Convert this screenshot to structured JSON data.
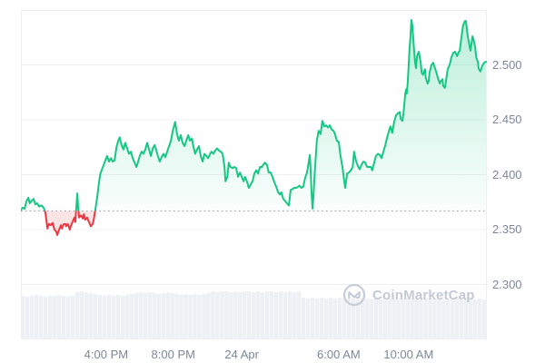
{
  "watermark": {
    "text": "CoinMarketCap"
  },
  "chart_data": {
    "type": "area",
    "grid": true,
    "legend": false,
    "ylim": [
      2.25,
      2.55
    ],
    "baseline_price": 2.367,
    "y_ticks": [
      2.5,
      2.45,
      2.4,
      2.35,
      2.3
    ],
    "y_tick_labels": [
      "2.500",
      "2.450",
      "2.400",
      "2.350",
      "2.300"
    ],
    "x_ticks": [
      {
        "label": "4:00 PM",
        "pos": 0.183
      },
      {
        "label": "8:00 PM",
        "pos": 0.327
      },
      {
        "label": "24 Apr",
        "pos": 0.474
      },
      {
        "label": "6:00 AM",
        "pos": 0.682
      },
      {
        "label": "10:00 AM",
        "pos": 0.832
      }
    ],
    "colors": {
      "up": "#16c784",
      "down": "#ea3943",
      "grid": "#edf0f3",
      "axis_text": "#7e8799",
      "baseline": "#8e97aa",
      "volume": "#edf0f4",
      "watermark": "#c3c9d4"
    },
    "series": [
      {
        "name": "price",
        "points": [
          [
            0.0,
            2.368
          ],
          [
            0.004,
            2.37
          ],
          [
            0.008,
            2.369
          ],
          [
            0.012,
            2.376
          ],
          [
            0.016,
            2.379
          ],
          [
            0.019,
            2.374
          ],
          [
            0.023,
            2.376
          ],
          [
            0.027,
            2.378
          ],
          [
            0.031,
            2.373
          ],
          [
            0.035,
            2.374
          ],
          [
            0.039,
            2.371
          ],
          [
            0.043,
            2.372
          ],
          [
            0.047,
            2.371
          ],
          [
            0.051,
            2.368
          ],
          [
            0.053,
            2.364
          ],
          [
            0.057,
            2.351
          ],
          [
            0.06,
            2.355
          ],
          [
            0.064,
            2.354
          ],
          [
            0.068,
            2.356
          ],
          [
            0.072,
            2.35
          ],
          [
            0.076,
            2.348
          ],
          [
            0.078,
            2.345
          ],
          [
            0.082,
            2.35
          ],
          [
            0.086,
            2.354
          ],
          [
            0.088,
            2.351
          ],
          [
            0.092,
            2.355
          ],
          [
            0.096,
            2.355
          ],
          [
            0.097,
            2.353
          ],
          [
            0.101,
            2.355
          ],
          [
            0.105,
            2.35
          ],
          [
            0.107,
            2.353
          ],
          [
            0.111,
            2.357
          ],
          [
            0.115,
            2.361
          ],
          [
            0.117,
            2.357
          ],
          [
            0.119,
            2.37
          ],
          [
            0.121,
            2.383
          ],
          [
            0.123,
            2.369
          ],
          [
            0.125,
            2.361
          ],
          [
            0.129,
            2.363
          ],
          [
            0.133,
            2.36
          ],
          [
            0.135,
            2.364
          ],
          [
            0.138,
            2.359
          ],
          [
            0.142,
            2.361
          ],
          [
            0.146,
            2.357
          ],
          [
            0.15,
            2.353
          ],
          [
            0.154,
            2.355
          ],
          [
            0.156,
            2.358
          ],
          [
            0.16,
            2.369
          ],
          [
            0.164,
            2.38
          ],
          [
            0.166,
            2.388
          ],
          [
            0.17,
            2.4
          ],
          [
            0.174,
            2.405
          ],
          [
            0.177,
            2.408
          ],
          [
            0.181,
            2.413
          ],
          [
            0.185,
            2.417
          ],
          [
            0.189,
            2.412
          ],
          [
            0.193,
            2.415
          ],
          [
            0.197,
            2.412
          ],
          [
            0.201,
            2.413
          ],
          [
            0.205,
            2.425
          ],
          [
            0.209,
            2.431
          ],
          [
            0.212,
            2.434
          ],
          [
            0.216,
            2.427
          ],
          [
            0.22,
            2.423
          ],
          [
            0.224,
            2.429
          ],
          [
            0.228,
            2.424
          ],
          [
            0.232,
            2.419
          ],
          [
            0.236,
            2.421
          ],
          [
            0.24,
            2.415
          ],
          [
            0.244,
            2.411
          ],
          [
            0.248,
            2.407
          ],
          [
            0.251,
            2.411
          ],
          [
            0.255,
            2.417
          ],
          [
            0.259,
            2.421
          ],
          [
            0.263,
            2.419
          ],
          [
            0.267,
            2.423
          ],
          [
            0.271,
            2.429
          ],
          [
            0.275,
            2.423
          ],
          [
            0.279,
            2.417
          ],
          [
            0.283,
            2.424
          ],
          [
            0.287,
            2.427
          ],
          [
            0.29,
            2.423
          ],
          [
            0.294,
            2.417
          ],
          [
            0.298,
            2.412
          ],
          [
            0.302,
            2.416
          ],
          [
            0.306,
            2.419
          ],
          [
            0.31,
            2.416
          ],
          [
            0.314,
            2.421
          ],
          [
            0.318,
            2.426
          ],
          [
            0.322,
            2.431
          ],
          [
            0.326,
            2.44
          ],
          [
            0.331,
            2.448
          ],
          [
            0.335,
            2.437
          ],
          [
            0.339,
            2.431
          ],
          [
            0.343,
            2.436
          ],
          [
            0.347,
            2.429
          ],
          [
            0.351,
            2.426
          ],
          [
            0.355,
            2.431
          ],
          [
            0.359,
            2.436
          ],
          [
            0.363,
            2.431
          ],
          [
            0.367,
            2.433
          ],
          [
            0.37,
            2.426
          ],
          [
            0.374,
            2.419
          ],
          [
            0.378,
            2.423
          ],
          [
            0.382,
            2.426
          ],
          [
            0.386,
            2.417
          ],
          [
            0.39,
            2.412
          ],
          [
            0.394,
            2.419
          ],
          [
            0.398,
            2.417
          ],
          [
            0.402,
            2.415
          ],
          [
            0.406,
            2.419
          ],
          [
            0.409,
            2.421
          ],
          [
            0.413,
            2.419
          ],
          [
            0.417,
            2.422
          ],
          [
            0.421,
            2.424
          ],
          [
            0.425,
            2.422
          ],
          [
            0.429,
            2.421
          ],
          [
            0.433,
            2.419
          ],
          [
            0.437,
            2.407
          ],
          [
            0.439,
            2.394
          ],
          [
            0.443,
            2.398
          ],
          [
            0.446,
            2.411
          ],
          [
            0.45,
            2.407
          ],
          [
            0.454,
            2.406
          ],
          [
            0.458,
            2.407
          ],
          [
            0.462,
            2.406
          ],
          [
            0.466,
            2.398
          ],
          [
            0.47,
            2.402
          ],
          [
            0.474,
            2.398
          ],
          [
            0.478,
            2.394
          ],
          [
            0.481,
            2.398
          ],
          [
            0.485,
            2.394
          ],
          [
            0.489,
            2.388
          ],
          [
            0.493,
            2.391
          ],
          [
            0.497,
            2.394
          ],
          [
            0.501,
            2.401
          ],
          [
            0.505,
            2.404
          ],
          [
            0.509,
            2.401
          ],
          [
            0.513,
            2.407
          ],
          [
            0.517,
            2.407
          ],
          [
            0.52,
            2.409
          ],
          [
            0.524,
            2.411
          ],
          [
            0.528,
            2.409
          ],
          [
            0.532,
            2.402
          ],
          [
            0.536,
            2.402
          ],
          [
            0.54,
            2.398
          ],
          [
            0.544,
            2.393
          ],
          [
            0.548,
            2.389
          ],
          [
            0.552,
            2.384
          ],
          [
            0.556,
            2.382
          ],
          [
            0.559,
            2.384
          ],
          [
            0.563,
            2.378
          ],
          [
            0.567,
            2.376
          ],
          [
            0.571,
            2.374
          ],
          [
            0.575,
            2.372
          ],
          [
            0.579,
            2.386
          ],
          [
            0.583,
            2.387
          ],
          [
            0.587,
            2.388
          ],
          [
            0.591,
            2.388
          ],
          [
            0.595,
            2.389
          ],
          [
            0.598,
            2.39
          ],
          [
            0.602,
            2.388
          ],
          [
            0.606,
            2.389
          ],
          [
            0.61,
            2.397
          ],
          [
            0.614,
            2.402
          ],
          [
            0.618,
            2.412
          ],
          [
            0.62,
            2.418
          ],
          [
            0.622,
            2.402
          ],
          [
            0.624,
            2.382
          ],
          [
            0.626,
            2.369
          ],
          [
            0.628,
            2.382
          ],
          [
            0.63,
            2.398
          ],
          [
            0.632,
            2.411
          ],
          [
            0.635,
            2.431
          ],
          [
            0.639,
            2.44
          ],
          [
            0.643,
            2.437
          ],
          [
            0.647,
            2.449
          ],
          [
            0.651,
            2.444
          ],
          [
            0.655,
            2.445
          ],
          [
            0.659,
            2.443
          ],
          [
            0.663,
            2.445
          ],
          [
            0.667,
            2.441
          ],
          [
            0.671,
            2.44
          ],
          [
            0.674,
            2.437
          ],
          [
            0.678,
            2.431
          ],
          [
            0.682,
            2.43
          ],
          [
            0.686,
            2.417
          ],
          [
            0.69,
            2.407
          ],
          [
            0.694,
            2.394
          ],
          [
            0.696,
            2.388
          ],
          [
            0.7,
            2.401
          ],
          [
            0.704,
            2.402
          ],
          [
            0.708,
            2.404
          ],
          [
            0.712,
            2.407
          ],
          [
            0.715,
            2.421
          ],
          [
            0.719,
            2.413
          ],
          [
            0.723,
            2.408
          ],
          [
            0.727,
            2.405
          ],
          [
            0.731,
            2.409
          ],
          [
            0.735,
            2.412
          ],
          [
            0.739,
            2.411
          ],
          [
            0.743,
            2.407
          ],
          [
            0.747,
            2.407
          ],
          [
            0.751,
            2.407
          ],
          [
            0.754,
            2.404
          ],
          [
            0.758,
            2.411
          ],
          [
            0.762,
            2.417
          ],
          [
            0.766,
            2.419
          ],
          [
            0.77,
            2.418
          ],
          [
            0.774,
            2.415
          ],
          [
            0.778,
            2.421
          ],
          [
            0.782,
            2.427
          ],
          [
            0.786,
            2.434
          ],
          [
            0.79,
            2.44
          ],
          [
            0.793,
            2.444
          ],
          [
            0.797,
            2.438
          ],
          [
            0.801,
            2.448
          ],
          [
            0.805,
            2.454
          ],
          [
            0.809,
            2.456
          ],
          [
            0.813,
            2.457
          ],
          [
            0.815,
            2.451
          ],
          [
            0.819,
            2.449
          ],
          [
            0.821,
            2.456
          ],
          [
            0.823,
            2.465
          ],
          [
            0.825,
            2.474
          ],
          [
            0.827,
            2.478
          ],
          [
            0.828,
            2.474
          ],
          [
            0.83,
            2.483
          ],
          [
            0.832,
            2.498
          ],
          [
            0.834,
            2.514
          ],
          [
            0.836,
            2.526
          ],
          [
            0.838,
            2.541
          ],
          [
            0.84,
            2.536
          ],
          [
            0.842,
            2.525
          ],
          [
            0.844,
            2.512
          ],
          [
            0.846,
            2.502
          ],
          [
            0.848,
            2.497
          ],
          [
            0.85,
            2.508
          ],
          [
            0.854,
            2.512
          ],
          [
            0.858,
            2.502
          ],
          [
            0.86,
            2.493
          ],
          [
            0.863,
            2.491
          ],
          [
            0.867,
            2.496
          ],
          [
            0.869,
            2.488
          ],
          [
            0.873,
            2.483
          ],
          [
            0.875,
            2.485
          ],
          [
            0.877,
            2.493
          ],
          [
            0.881,
            2.5
          ],
          [
            0.885,
            2.502
          ],
          [
            0.887,
            2.499
          ],
          [
            0.891,
            2.494
          ],
          [
            0.895,
            2.488
          ],
          [
            0.899,
            2.483
          ],
          [
            0.901,
            2.485
          ],
          [
            0.905,
            2.487
          ],
          [
            0.906,
            2.481
          ],
          [
            0.91,
            2.479
          ],
          [
            0.912,
            2.485
          ],
          [
            0.916,
            2.496
          ],
          [
            0.92,
            2.5
          ],
          [
            0.924,
            2.507
          ],
          [
            0.928,
            2.511
          ],
          [
            0.932,
            2.512
          ],
          [
            0.936,
            2.508
          ],
          [
            0.94,
            2.512
          ],
          [
            0.942,
            2.513
          ],
          [
            0.945,
            2.524
          ],
          [
            0.949,
            2.536
          ],
          [
            0.953,
            2.54
          ],
          [
            0.955,
            2.54
          ],
          [
            0.959,
            2.526
          ],
          [
            0.963,
            2.517
          ],
          [
            0.965,
            2.513
          ],
          [
            0.969,
            2.526
          ],
          [
            0.971,
            2.524
          ],
          [
            0.975,
            2.516
          ],
          [
            0.977,
            2.507
          ],
          [
            0.981,
            2.502
          ],
          [
            0.982,
            2.497
          ],
          [
            0.986,
            2.494
          ],
          [
            0.99,
            2.499
          ],
          [
            0.994,
            2.502
          ],
          [
            0.998,
            2.503
          ]
        ]
      }
    ],
    "volume_bars": [
      48,
      47,
      48,
      49,
      48,
      47,
      48,
      48,
      49,
      48,
      47,
      48,
      52,
      53,
      52,
      51,
      50,
      49,
      48,
      49,
      48,
      49,
      48,
      49,
      50,
      51,
      52,
      51,
      52,
      51,
      50,
      51,
      52,
      51,
      50,
      49,
      50,
      49,
      50,
      49,
      50,
      51,
      53,
      52,
      53,
      53,
      52,
      53,
      52,
      53,
      53,
      52,
      53,
      52,
      53,
      53,
      52,
      53,
      52,
      53,
      52,
      53,
      46,
      45,
      46,
      45,
      46,
      45,
      46,
      45,
      46,
      45,
      44,
      45,
      44,
      45,
      45,
      44,
      45,
      44,
      45,
      45,
      44,
      45,
      44,
      45,
      44,
      45,
      44,
      45,
      45,
      44,
      45,
      44,
      45,
      44,
      45,
      44,
      45,
      45,
      44,
      45,
      44
    ]
  }
}
